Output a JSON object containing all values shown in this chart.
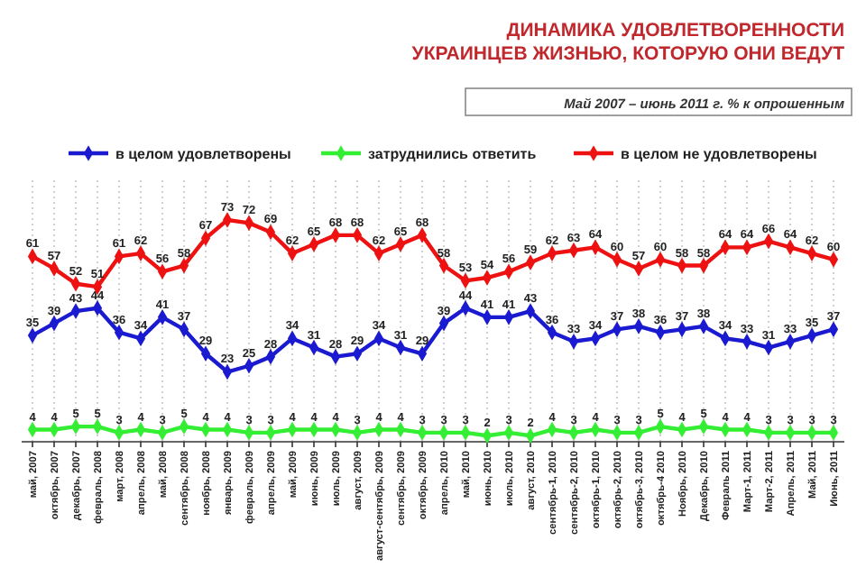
{
  "chart_data": {
    "type": "line",
    "title": "ДИНАМИКА УДОВЛЕТВОРЕННОСТИ УКРАИНЦЕВ ЖИЗНЬЮ, КОТОРУЮ ОНИ ВЕДУТ",
    "subtitle": "Май 2007 – июнь 2011 г. % к опрошенным",
    "categories": [
      "май, 2007",
      "октябрь, 2007",
      "декабрь, 2007",
      "февраль, 2008",
      "март, 2008",
      "апрель, 2008",
      "май, 2008",
      "сентябрь, 2008",
      "ноябрь, 2008",
      "январь, 2009",
      "февраль, 2009",
      "апрель, 2009",
      "май, 2009",
      "июнь, 2009",
      "июль, 2009",
      "август, 2009",
      "август-сентябрь, 2009",
      "сентябрь, 2009",
      "октябрь, 2009",
      "апрель, 2010",
      "май, 2010",
      "июнь, 2010",
      "июль, 2010",
      "август, 2010",
      "сентябрь-1, 2010",
      "сентябрь-2, 2010",
      "октябрь-1, 2010",
      "октябрь-2, 2010",
      "октябрь-3, 2010",
      "октябрь-4 2010",
      "Ноябрь, 2010",
      "Декабрь, 2010",
      "Февраль 2011",
      "Март-1, 2011",
      "Март-2, 2011",
      "Апрель, 2011",
      "Май, 2011",
      "Июнь, 2011"
    ],
    "series": [
      {
        "name": "в целом удовлетворены",
        "color": "#1a1ad0",
        "values": [
          35,
          39,
          43,
          44,
          36,
          34,
          41,
          37,
          29,
          23,
          25,
          28,
          34,
          31,
          28,
          29,
          34,
          31,
          29,
          39,
          44,
          41,
          41,
          43,
          36,
          33,
          34,
          37,
          38,
          36,
          37,
          38,
          34,
          33,
          31,
          33,
          35,
          37
        ]
      },
      {
        "name": "затруднились ответить",
        "color": "#33ee33",
        "values": [
          4,
          4,
          5,
          5,
          3,
          4,
          3,
          5,
          4,
          4,
          3,
          3,
          4,
          4,
          4,
          3,
          4,
          4,
          3,
          3,
          3,
          2,
          3,
          2,
          4,
          3,
          4,
          3,
          3,
          5,
          4,
          5,
          4,
          4,
          3,
          3,
          3,
          3
        ]
      },
      {
        "name": "в целом не удовлетворены",
        "color": "#ee1111",
        "values": [
          61,
          57,
          52,
          51,
          61,
          62,
          56,
          58,
          67,
          73,
          72,
          69,
          62,
          65,
          68,
          68,
          62,
          65,
          68,
          58,
          53,
          54,
          56,
          59,
          62,
          63,
          64,
          60,
          57,
          60,
          58,
          58,
          64,
          64,
          66,
          64,
          62,
          60
        ]
      }
    ],
    "data_labels": true,
    "grid": "x",
    "legend": "top",
    "marker": "diamond",
    "line_style": "solid"
  }
}
